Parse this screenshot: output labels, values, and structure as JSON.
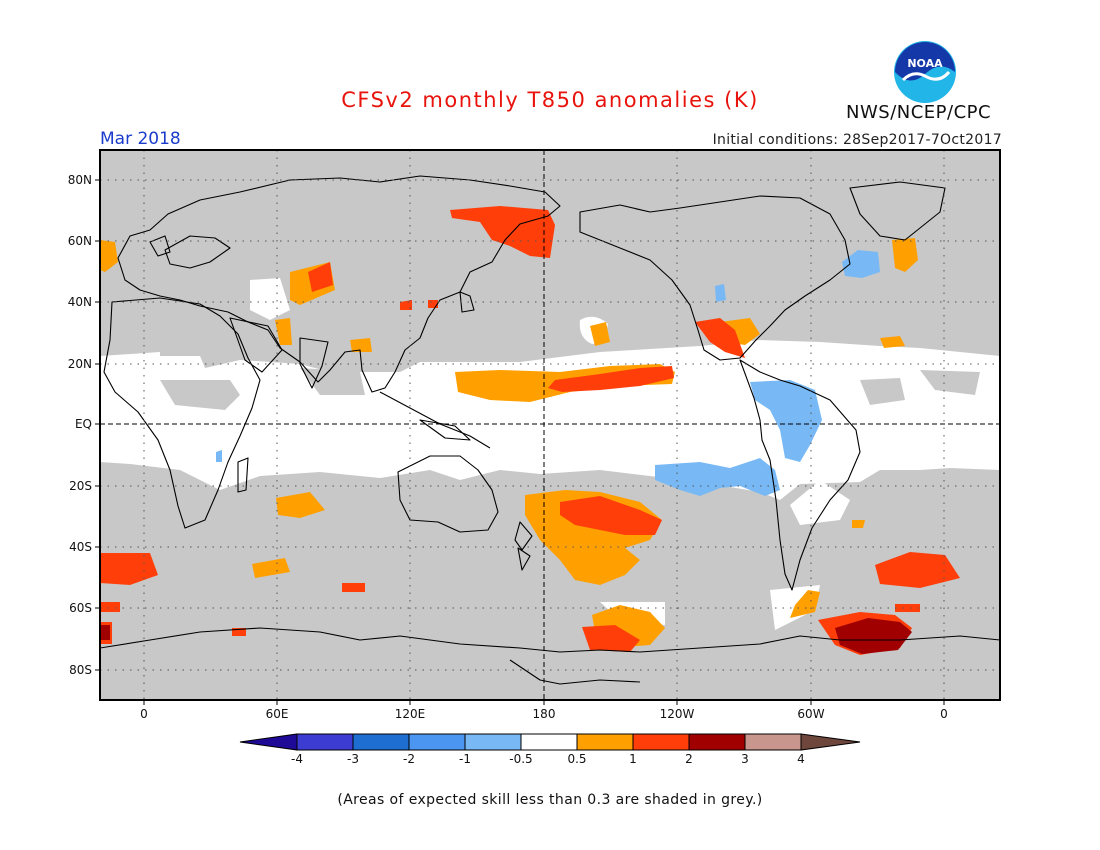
{
  "header": {
    "title": "CFSv2 monthly T850 anomalies (K)",
    "month": "Mar 2018",
    "initial_conditions": "Initial conditions: 28Sep2017-7Oct2017",
    "organization": "NWS/NCEP/CPC",
    "logo_text": "NOAA"
  },
  "map": {
    "lat_labels": [
      "80N",
      "60N",
      "40N",
      "20N",
      "EQ",
      "20S",
      "40S",
      "60S",
      "80S"
    ],
    "lon_labels": [
      "0",
      "60E",
      "120E",
      "180",
      "120W",
      "60W",
      "0"
    ],
    "colors": {
      "grey_low_skill": "#c8c8c8",
      "near_zero": "#ffffff",
      "pos_0_5_1": "#ffa000",
      "pos_1_2": "#ff3e0a",
      "pos_2_3": "#a00000",
      "neg_0_5_1": "#78b9f5",
      "neg_1_2": "#4a96ee"
    }
  },
  "colorbar": {
    "labels": [
      "-4",
      "-3",
      "-2",
      "-1",
      "-0.5",
      "0.5",
      "1",
      "2",
      "3",
      "4"
    ],
    "colors": [
      "#1e0a96",
      "#3c3cd2",
      "#1e6ed2",
      "#4b96f0",
      "#78b9f5",
      "#ffffff",
      "#ffa000",
      "#ff3e0a",
      "#a00000",
      "#c8968c",
      "#6e463c"
    ]
  },
  "footer": {
    "note": "(Areas of expected skill less than 0.3 are shaded in grey.)"
  }
}
